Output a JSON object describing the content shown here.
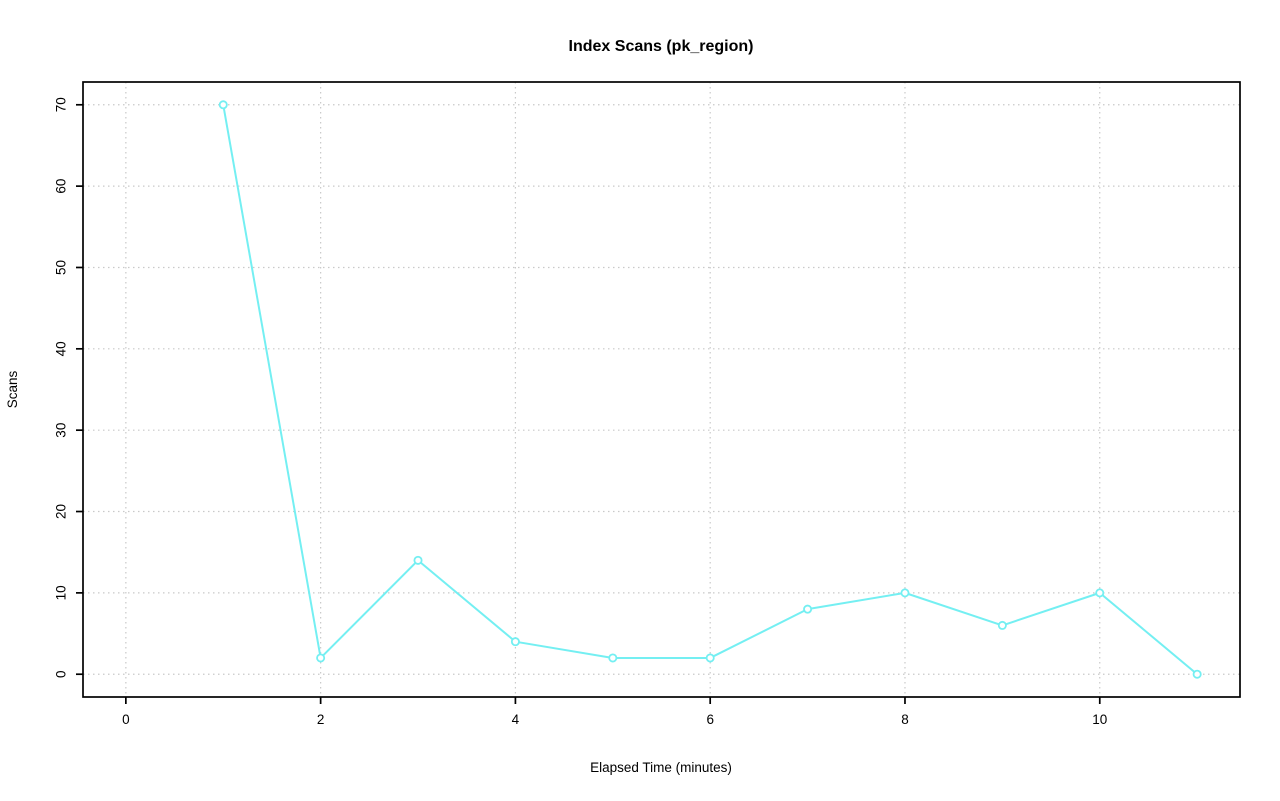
{
  "page": {
    "background_color": "#ffffff"
  },
  "chart_data": {
    "type": "line",
    "title": "Index Scans (pk_region)",
    "xlabel": "Elapsed Time (minutes)",
    "ylabel": "Scans",
    "x": [
      1,
      2,
      3,
      4,
      5,
      6,
      7,
      8,
      9,
      10,
      11
    ],
    "y": [
      70,
      2,
      14,
      4,
      2,
      2,
      8,
      10,
      6,
      10,
      0
    ],
    "series_name": "Index Scans",
    "xticks": [
      0,
      2,
      4,
      6,
      8,
      10
    ],
    "yticks": [
      0,
      10,
      20,
      30,
      40,
      50,
      60,
      70
    ],
    "xlim": [
      -0.44,
      11.44
    ],
    "ylim": [
      -2.8,
      72.8
    ],
    "grid": "dotted",
    "legend": "none",
    "marker": "open-circle",
    "line_color": "#74EFF2",
    "marker_color": "#74EFF2",
    "grid_color": "#C9C9C9",
    "axis_color": "#000000",
    "text_color": "#000000"
  }
}
